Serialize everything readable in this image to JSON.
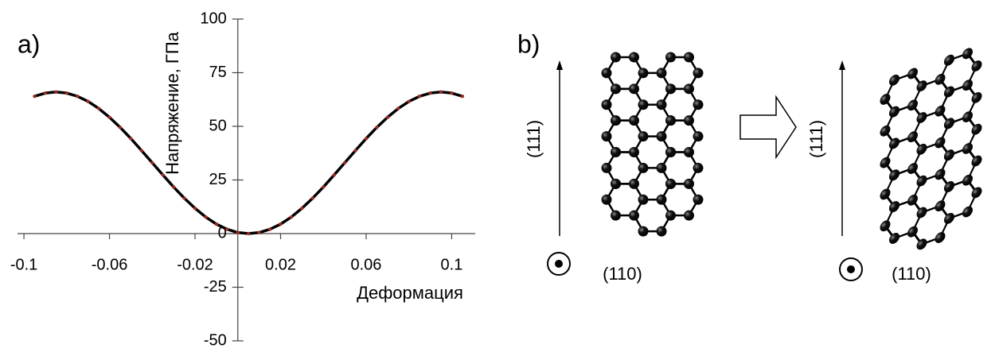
{
  "chart_data": {
    "type": "line",
    "panel_label": "a)",
    "y_label": "Напряжение, ГПа",
    "x_label": "Деформация",
    "x": [
      -0.095,
      -0.09,
      -0.085,
      -0.08,
      -0.075,
      -0.07,
      -0.065,
      -0.06,
      -0.055,
      -0.05,
      -0.045,
      -0.04,
      -0.035,
      -0.03,
      -0.025,
      -0.02,
      -0.015,
      -0.01,
      -0.005,
      0,
      0.005,
      0.01,
      0.015,
      0.02,
      0.025,
      0.03,
      0.035,
      0.04,
      0.045,
      0.05,
      0.055,
      0.06,
      0.065,
      0.07,
      0.075,
      0.08,
      0.085,
      0.09,
      0.095,
      0.1,
      0.105
    ],
    "values": [
      64.0,
      65.5,
      66,
      65.5,
      64.0,
      61.6,
      58.3,
      54.2,
      49.5,
      44.3,
      38.7,
      33,
      27.3,
      21.7,
      16.5,
      11.8,
      7.7,
      4.4,
      2.0,
      0.5,
      0,
      0.5,
      2.0,
      4.4,
      7.7,
      11.8,
      16.5,
      21.7,
      27.3,
      33,
      38.7,
      44.3,
      49.5,
      54.2,
      58.3,
      61.6,
      64.0,
      65.5,
      66,
      65.5,
      64.0
    ],
    "color": "#000000",
    "marker_color": "#9a2a24",
    "xlim": [
      -0.103,
      0.111
    ],
    "xticks": [
      -0.1,
      -0.06,
      -0.02,
      0.02,
      0.06,
      0.1
    ],
    "ylim": [
      -50,
      100
    ],
    "yticks": [
      -50,
      -25,
      0,
      25,
      50,
      75,
      100
    ]
  },
  "diagram": {
    "panel_label": "b)",
    "left": {
      "direction_label": "(111)",
      "normal_label": "(110)"
    },
    "right": {
      "direction_label": "(111)",
      "normal_label": "(110)"
    }
  }
}
